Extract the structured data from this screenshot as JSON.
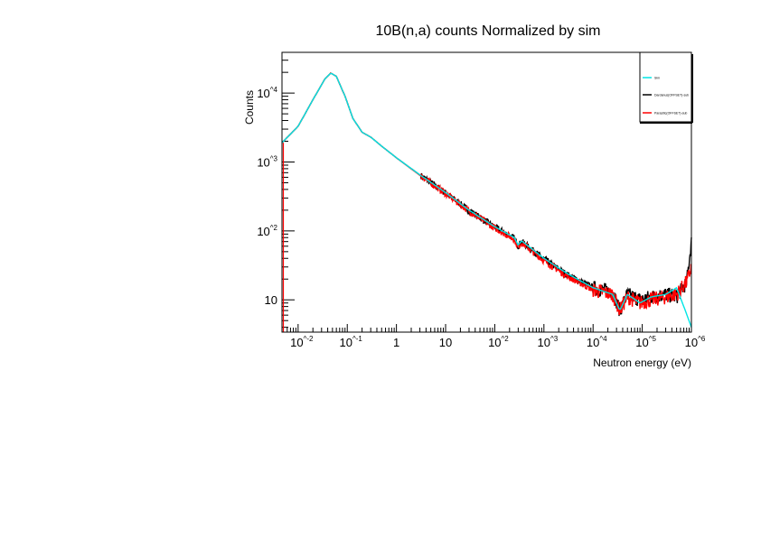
{
  "chart_data": {
    "type": "line",
    "title": "10B(n,a) counts Normalized by sim",
    "xlabel": "Neutron energy (eV)",
    "ylabel": "Counts",
    "xscale": "log",
    "yscale": "log",
    "xlim": [
      0.0047,
      1000000
    ],
    "ylim": [
      3.4,
      39000
    ],
    "grid": false,
    "legend_position": "top-right",
    "x_ticks": [
      {
        "value": 0.01,
        "label": "10^-2"
      },
      {
        "value": 0.1,
        "label": "10^-1"
      },
      {
        "value": 1,
        "label": "1"
      },
      {
        "value": 10,
        "label": "10"
      },
      {
        "value": 100,
        "label": "10^2"
      },
      {
        "value": 1000,
        "label": "10^3"
      },
      {
        "value": 10000,
        "label": "10^4"
      },
      {
        "value": 100000,
        "label": "10^5"
      },
      {
        "value": 1000000,
        "label": "10^6"
      }
    ],
    "y_ticks": [
      {
        "value": 10,
        "label": "10"
      },
      {
        "value": 100,
        "label": "10^2"
      },
      {
        "value": 1000,
        "label": "10^3"
      },
      {
        "value": 10000,
        "label": "10^4"
      }
    ],
    "series": [
      {
        "name": "Sim",
        "color": "#00e5e5",
        "points": [
          [
            0.0047,
            1900
          ],
          [
            0.01,
            3300
          ],
          [
            0.02,
            8000
          ],
          [
            0.035,
            16000
          ],
          [
            0.046,
            19500
          ],
          [
            0.06,
            17500
          ],
          [
            0.09,
            9000
          ],
          [
            0.13,
            4300
          ],
          [
            0.2,
            2700
          ],
          [
            0.3,
            2300
          ],
          [
            0.5,
            1700
          ],
          [
            1,
            1150
          ],
          [
            3,
            650
          ],
          [
            10,
            360
          ],
          [
            30,
            200
          ],
          [
            100,
            115
          ],
          [
            250,
            80
          ],
          [
            300,
            62
          ],
          [
            350,
            72
          ],
          [
            1000,
            40
          ],
          [
            3000,
            24
          ],
          [
            10000,
            15
          ],
          [
            25000,
            12
          ],
          [
            35000,
            7
          ],
          [
            50000,
            12
          ],
          [
            90000,
            9
          ],
          [
            150000,
            11
          ],
          [
            300000,
            12
          ],
          [
            500000,
            15
          ],
          [
            700000,
            8
          ],
          [
            1000000,
            4
          ]
        ]
      },
      {
        "name": "Dardanus(OFFSET)-sub",
        "color": "#000000",
        "points": [
          [
            0.0047,
            1900
          ],
          [
            0.01,
            3300
          ],
          [
            0.02,
            8000
          ],
          [
            0.035,
            16000
          ],
          [
            0.046,
            19500
          ],
          [
            0.06,
            17500
          ],
          [
            0.09,
            9000
          ],
          [
            0.13,
            4300
          ],
          [
            0.2,
            2700
          ],
          [
            0.3,
            2300
          ],
          [
            0.5,
            1700
          ],
          [
            1,
            1150
          ],
          [
            3,
            650
          ],
          [
            10,
            355
          ],
          [
            30,
            198
          ],
          [
            100,
            113
          ],
          [
            250,
            78
          ],
          [
            300,
            60
          ],
          [
            350,
            70
          ],
          [
            1000,
            39
          ],
          [
            3000,
            23
          ],
          [
            10000,
            15
          ],
          [
            25000,
            13
          ],
          [
            35000,
            7
          ],
          [
            50000,
            12
          ],
          [
            90000,
            10
          ],
          [
            150000,
            11
          ],
          [
            300000,
            12
          ],
          [
            500000,
            11
          ],
          [
            800000,
            18
          ],
          [
            1000000,
            70
          ]
        ]
      },
      {
        "name": "Parasitic(OFFSET)-sub",
        "color": "#ff0000",
        "points": [
          [
            0.0047,
            1900
          ],
          [
            0.01,
            3300
          ],
          [
            0.02,
            8000
          ],
          [
            0.035,
            16000
          ],
          [
            0.046,
            19500
          ],
          [
            0.06,
            17500
          ],
          [
            0.09,
            9000
          ],
          [
            0.13,
            4300
          ],
          [
            0.2,
            2700
          ],
          [
            0.3,
            2300
          ],
          [
            0.5,
            1700
          ],
          [
            1,
            1150
          ],
          [
            3,
            640
          ],
          [
            10,
            350
          ],
          [
            30,
            195
          ],
          [
            100,
            110
          ],
          [
            250,
            76
          ],
          [
            300,
            58
          ],
          [
            350,
            68
          ],
          [
            1000,
            37
          ],
          [
            3000,
            22
          ],
          [
            10000,
            14
          ],
          [
            25000,
            12
          ],
          [
            35000,
            7
          ],
          [
            50000,
            11
          ],
          [
            90000,
            9
          ],
          [
            150000,
            10
          ],
          [
            300000,
            11
          ],
          [
            500000,
            12
          ],
          [
            800000,
            18
          ],
          [
            1000000,
            30
          ]
        ]
      }
    ]
  }
}
